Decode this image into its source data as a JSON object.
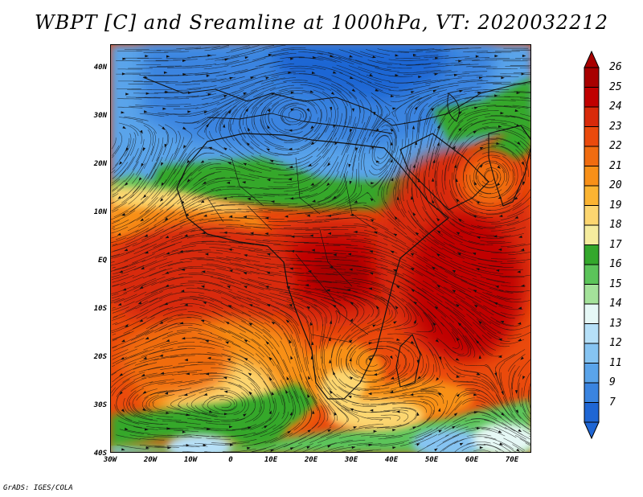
{
  "title": "WBPT [C] and Sreamline at 1000hPa, VT: 2020032212",
  "credit": "GrADS: IGES/COLA",
  "lat_labels": [
    "40N",
    "30N",
    "20N",
    "10N",
    "EQ",
    "10S",
    "20S",
    "30S",
    "40S"
  ],
  "lon_labels": [
    "30W",
    "20W",
    "10W",
    "0",
    "10E",
    "20E",
    "30E",
    "40E",
    "50E",
    "60E",
    "70E"
  ],
  "colorbar": {
    "labels": [
      "26",
      "25",
      "24",
      "23",
      "22",
      "21",
      "20",
      "19",
      "18",
      "17",
      "16",
      "15",
      "14",
      "13",
      "12",
      "11",
      "9",
      "7"
    ],
    "colors": [
      "#a80000",
      "#c00000",
      "#d82a0a",
      "#ea4a0c",
      "#f06c10",
      "#f89018",
      "#fbb432",
      "#fcd670",
      "#f5ec9e",
      "#34a82c",
      "#5cc45a",
      "#a4e29a",
      "#e6f8f6",
      "#b6e0f8",
      "#86c4f2",
      "#5aa4ea",
      "#3a84e0",
      "#1f66d4"
    ]
  },
  "map": {
    "lon_range": [
      -30,
      75
    ],
    "lat_range": [
      -40,
      45
    ],
    "field": "wet bulb potential temperature at 1000hPa",
    "overlay": "streamlines"
  }
}
